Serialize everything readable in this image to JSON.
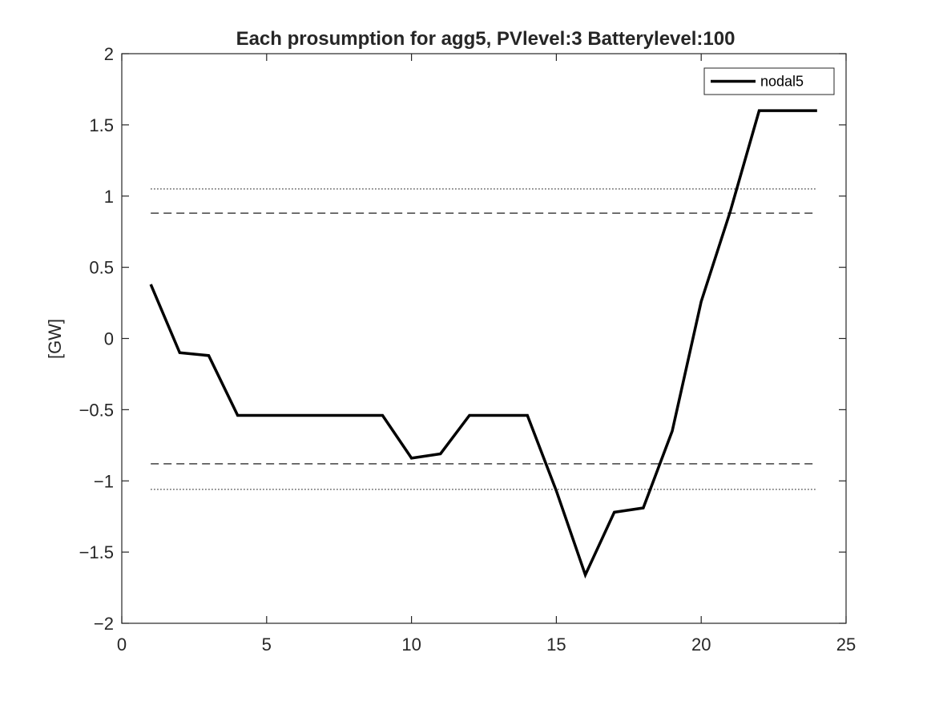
{
  "chart_data": {
    "type": "line",
    "title": "Each prosumption for agg5, PVlevel:3 Batterylevel:100",
    "xlabel": "",
    "ylabel": "[GW]",
    "xlim": [
      0,
      25
    ],
    "ylim": [
      -2,
      2
    ],
    "xticks": [
      0,
      5,
      10,
      15,
      20,
      25
    ],
    "yticks": [
      -2,
      -1.5,
      -1,
      -0.5,
      0,
      0.5,
      1,
      1.5,
      2
    ],
    "xtick_labels": [
      "0",
      "5",
      "10",
      "15",
      "20",
      "25"
    ],
    "ytick_labels": [
      "−2",
      "−1.5",
      "−1",
      "−0.5",
      "0",
      "0.5",
      "1",
      "1.5",
      "2"
    ],
    "grid": false,
    "legend_position": "top-right",
    "series": [
      {
        "name": "nodal5",
        "color": "#000000",
        "style": "solid",
        "x": [
          1,
          2,
          3,
          4,
          5,
          6,
          7,
          8,
          9,
          10,
          11,
          12,
          13,
          14,
          15,
          16,
          17,
          18,
          19,
          20,
          21,
          22,
          23,
          24
        ],
        "y": [
          0.38,
          -0.1,
          -0.12,
          -0.54,
          -0.54,
          -0.54,
          -0.54,
          -0.54,
          -0.54,
          -0.84,
          -0.81,
          -0.54,
          -0.54,
          -0.54,
          -1.07,
          -1.66,
          -1.22,
          -1.19,
          -0.65,
          0.26,
          0.89,
          1.6,
          1.6,
          1.6
        ]
      }
    ],
    "reference_lines": [
      {
        "y": 1.05,
        "x_range": [
          1,
          24
        ],
        "style": "dotted",
        "color": "#000000"
      },
      {
        "y": 0.88,
        "x_range": [
          1,
          24
        ],
        "style": "dashed",
        "color": "#000000"
      },
      {
        "y": -0.88,
        "x_range": [
          1,
          24
        ],
        "style": "dashed",
        "color": "#000000"
      },
      {
        "y": -1.06,
        "x_range": [
          1,
          24
        ],
        "style": "dotted",
        "color": "#000000"
      }
    ]
  }
}
